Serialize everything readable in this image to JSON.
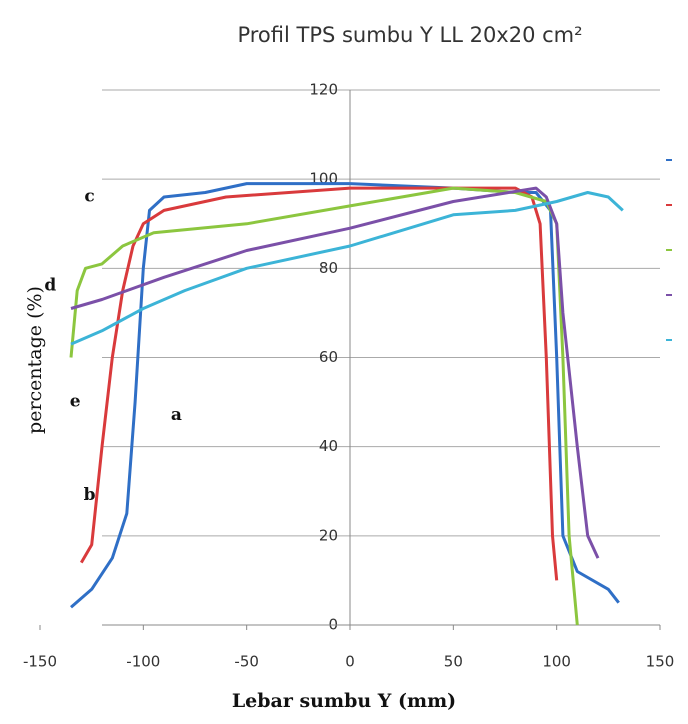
{
  "chart_data": {
    "type": "line",
    "title": "Profil   TPS sumbu Y  LL 20x20 cm²",
    "x_label": "Lebar sumbu Y (mm)",
    "y_label": "percentage (%)",
    "xlim": [
      -150,
      150
    ],
    "ylim": [
      0,
      120
    ],
    "xticks": [
      -150,
      -100,
      -50,
      0,
      50,
      100,
      150
    ],
    "yticks": [
      0,
      20,
      40,
      60,
      80,
      100,
      120
    ],
    "grid": true,
    "series": [
      {
        "color": "#2f6fc6",
        "x": [
          -135,
          -125,
          -115,
          -108,
          -104,
          -100,
          -97,
          -90,
          -70,
          -50,
          0,
          50,
          80,
          90,
          97,
          100,
          103,
          110,
          125,
          130
        ],
        "values": [
          4,
          8,
          15,
          25,
          50,
          80,
          93,
          96,
          97,
          99,
          99,
          98,
          97,
          97,
          93,
          60,
          20,
          12,
          8,
          5
        ]
      },
      {
        "color": "#d93a3c",
        "x": [
          -130,
          -125,
          -120,
          -115,
          -110,
          -105,
          -100,
          -90,
          -60,
          0,
          50,
          80,
          88,
          92,
          95,
          98,
          100
        ],
        "values": [
          14,
          18,
          40,
          60,
          75,
          85,
          90,
          93,
          96,
          98,
          98,
          98,
          96,
          90,
          60,
          20,
          10
        ]
      },
      {
        "color": "#8cc63f",
        "x": [
          -135,
          -132,
          -128,
          -120,
          -110,
          -95,
          -50,
          0,
          50,
          80,
          95,
          100,
          103,
          106,
          110
        ],
        "values": [
          60,
          75,
          80,
          81,
          85,
          88,
          90,
          94,
          98,
          97,
          95,
          90,
          60,
          20,
          0
        ]
      },
      {
        "color": "#7b50a8",
        "x": [
          -135,
          -120,
          -90,
          -50,
          0,
          50,
          90,
          95,
          100,
          103,
          110,
          115,
          120
        ],
        "values": [
          71,
          73,
          78,
          84,
          89,
          95,
          98,
          96,
          90,
          70,
          40,
          20,
          15
        ]
      },
      {
        "color": "#3cb4d7",
        "x": [
          -135,
          -120,
          -100,
          -80,
          -50,
          0,
          50,
          80,
          100,
          115,
          125,
          132
        ],
        "values": [
          63,
          66,
          71,
          75,
          80,
          85,
          92,
          93,
          95,
          97,
          96,
          93
        ]
      }
    ],
    "annotations": [
      {
        "text": "a",
        "x": -84,
        "y": 47
      },
      {
        "text": "b",
        "x": -126,
        "y": 29
      },
      {
        "text": "c",
        "x": -126,
        "y": 96
      },
      {
        "text": "d",
        "x": -145,
        "y": 76
      },
      {
        "text": "e",
        "x": -133,
        "y": 50
      }
    ]
  }
}
